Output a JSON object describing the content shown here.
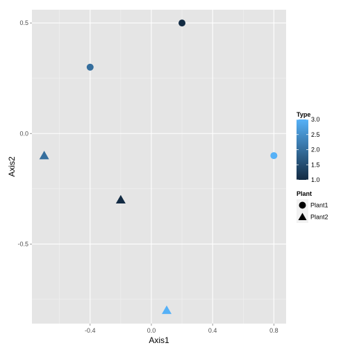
{
  "chart_data": {
    "type": "scatter",
    "xlabel": "Axis1",
    "ylabel": "Axis2",
    "xlim": [
      -0.78,
      0.88
    ],
    "ylim": [
      -0.86,
      0.56
    ],
    "x_ticks": [
      -0.4,
      0.0,
      0.4,
      0.8
    ],
    "x_tick_labels": [
      "-0.4",
      "0.0",
      "0.4",
      "0.8"
    ],
    "y_ticks": [
      -0.5,
      0.0,
      0.5
    ],
    "y_tick_labels": [
      "-0.5",
      "0.0",
      "0.5"
    ],
    "grid": true,
    "legend_placement": "right",
    "points": [
      {
        "x": 0.2,
        "y": 0.5,
        "type": 1.0,
        "plant": "Plant1"
      },
      {
        "x": -0.4,
        "y": 0.3,
        "type": 2.0,
        "plant": "Plant1"
      },
      {
        "x": 0.8,
        "y": -0.1,
        "type": 3.0,
        "plant": "Plant1"
      },
      {
        "x": -0.7,
        "y": -0.1,
        "type": 2.0,
        "plant": "Plant2"
      },
      {
        "x": -0.2,
        "y": -0.3,
        "type": 1.0,
        "plant": "Plant2"
      },
      {
        "x": 0.1,
        "y": -0.8,
        "type": 3.0,
        "plant": "Plant2"
      }
    ],
    "color_legend": {
      "title": "Type",
      "min": 1.0,
      "max": 3.0,
      "low_color": "#132B43",
      "high_color": "#56B1F7",
      "breaks": [
        1.0,
        1.5,
        2.0,
        2.5,
        3.0
      ],
      "break_labels": [
        "1.0",
        "1.5",
        "2.0",
        "2.5",
        "3.0"
      ]
    },
    "shape_legend": {
      "title": "Plant",
      "items": [
        {
          "label": "Plant1",
          "shape": "circle"
        },
        {
          "label": "Plant2",
          "shape": "triangle"
        }
      ]
    },
    "colors": {
      "panel_background": "#e5e5e5",
      "grid_major": "#ffffff",
      "grid_minor": "#f2f2f2"
    }
  }
}
